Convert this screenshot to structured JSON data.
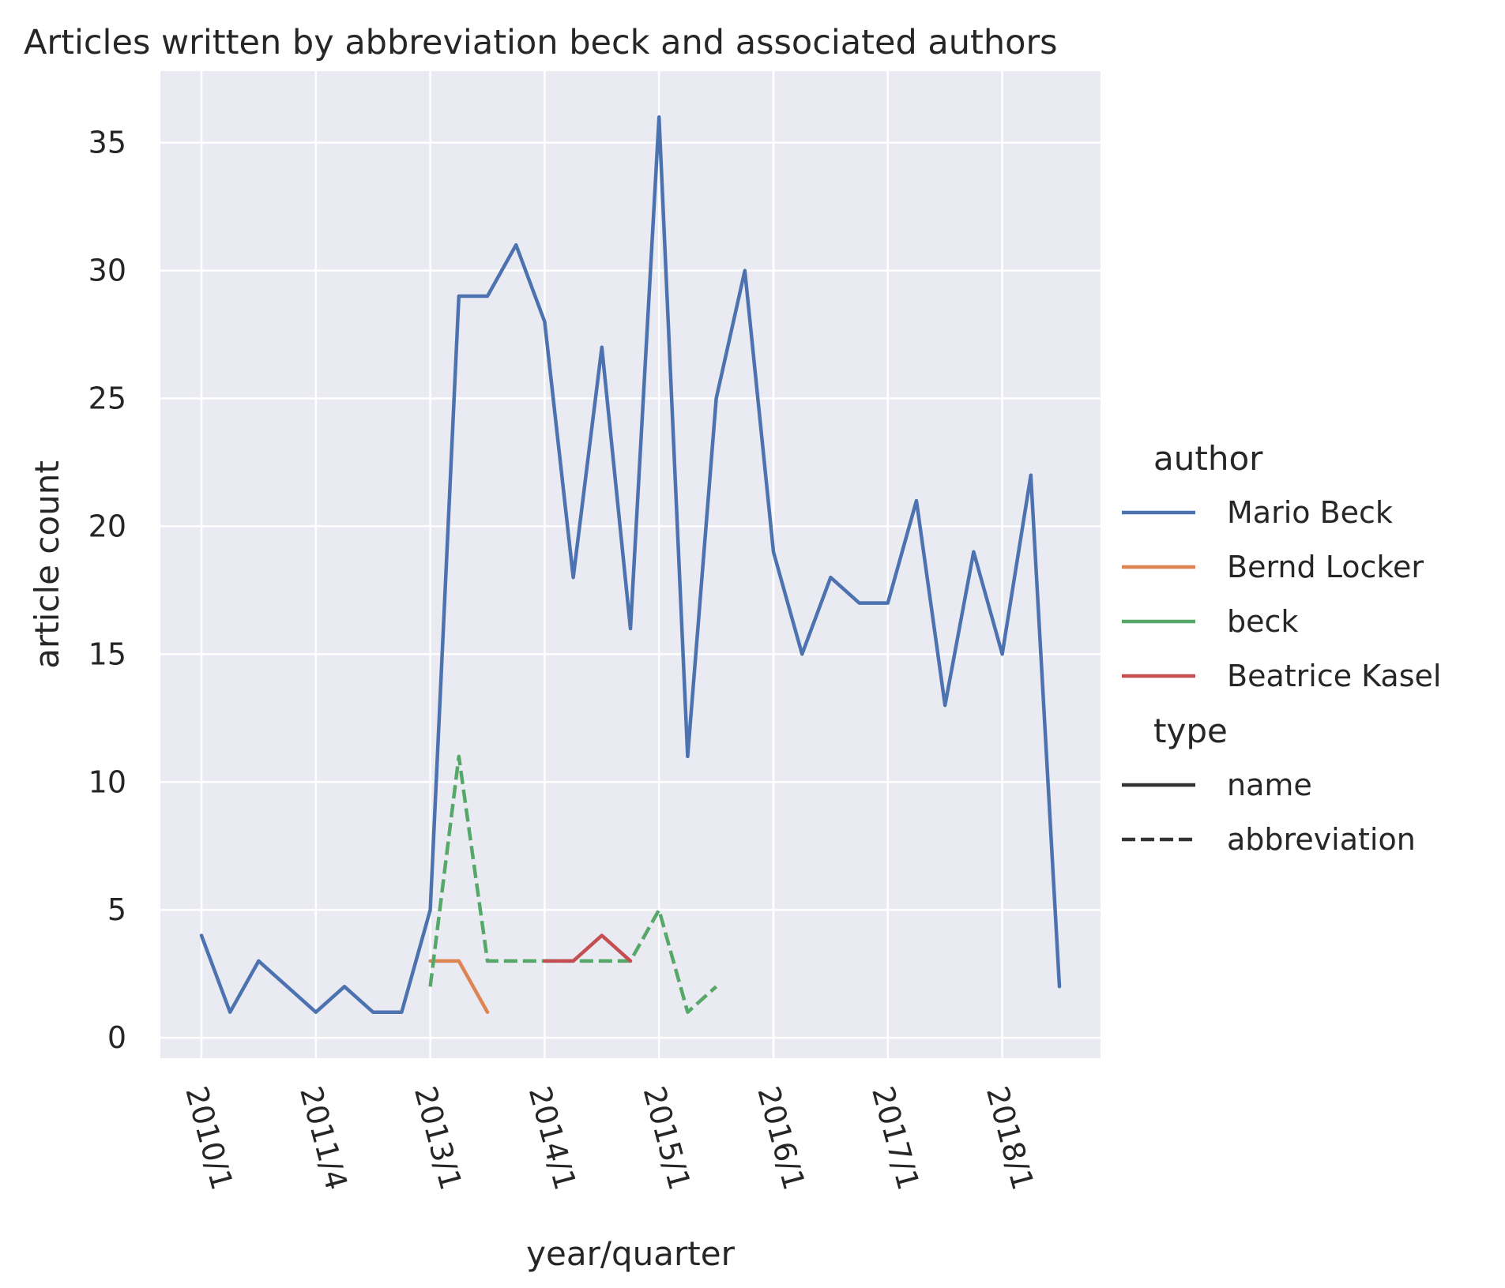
{
  "chart_data": {
    "type": "line",
    "title": "Articles written by abbreviation beck and associated authors",
    "xlabel": "year/quarter",
    "ylabel": "article count",
    "ylim": [
      -0.8,
      37.8
    ],
    "yticks": [
      0,
      5,
      10,
      15,
      20,
      25,
      30,
      35
    ],
    "x_tick_labels": [
      {
        "label": "2010/1",
        "index": 0
      },
      {
        "label": "2011/4",
        "index": 4
      },
      {
        "label": "2013/1",
        "index": 8
      },
      {
        "label": "2014/1",
        "index": 12
      },
      {
        "label": "2015/1",
        "index": 16
      },
      {
        "label": "2016/1",
        "index": 20
      },
      {
        "label": "2017/1",
        "index": 24
      },
      {
        "label": "2018/1",
        "index": 28
      }
    ],
    "grid": true,
    "legend_position": "right",
    "legend": {
      "author_title": "author",
      "authors": [
        {
          "name": "Mario Beck",
          "color": "#4c72b0"
        },
        {
          "name": "Bernd Locker",
          "color": "#dd8452"
        },
        {
          "name": "beck",
          "color": "#55a868"
        },
        {
          "name": "Beatrice Kasel",
          "color": "#c44e52"
        }
      ],
      "type_title": "type",
      "types": [
        {
          "name": "name",
          "dash": "solid"
        },
        {
          "name": "abbreviation",
          "dash": "dashed"
        }
      ]
    },
    "series": [
      {
        "name": "Mario Beck",
        "type": "name",
        "color": "#4c72b0",
        "points": [
          [
            0,
            4
          ],
          [
            1,
            1
          ],
          [
            2,
            3
          ],
          [
            3,
            2
          ],
          [
            4,
            1
          ],
          [
            5,
            2
          ],
          [
            6,
            1
          ],
          [
            7,
            1
          ],
          [
            8,
            5
          ],
          [
            9,
            29
          ],
          [
            10,
            29
          ],
          [
            11,
            31
          ],
          [
            12,
            28
          ],
          [
            13,
            18
          ],
          [
            14,
            27
          ],
          [
            15,
            16
          ],
          [
            16,
            36
          ],
          [
            17,
            11
          ],
          [
            18,
            25
          ],
          [
            19,
            30
          ],
          [
            20,
            19
          ],
          [
            21,
            15
          ],
          [
            22,
            18
          ],
          [
            23,
            17
          ],
          [
            24,
            17
          ],
          [
            25,
            21
          ],
          [
            26,
            13
          ],
          [
            27,
            19
          ],
          [
            28,
            15
          ],
          [
            29,
            22
          ],
          [
            30,
            2
          ]
        ]
      },
      {
        "name": "Bernd Locker",
        "type": "name",
        "color": "#dd8452",
        "points": [
          [
            8,
            3
          ],
          [
            9,
            3
          ],
          [
            10,
            1
          ]
        ]
      },
      {
        "name": "beck",
        "type": "abbreviation",
        "color": "#55a868",
        "points": [
          [
            8,
            2
          ],
          [
            9,
            11
          ],
          [
            10,
            3
          ],
          [
            11,
            3
          ],
          [
            12,
            3
          ],
          [
            13,
            3
          ],
          [
            14,
            3
          ],
          [
            15,
            3
          ],
          [
            16,
            5
          ],
          [
            17,
            1
          ],
          [
            18,
            2
          ]
        ]
      },
      {
        "name": "Beatrice Kasel",
        "type": "name",
        "color": "#c44e52",
        "points": [
          [
            12,
            3
          ],
          [
            13,
            3
          ],
          [
            14,
            4
          ],
          [
            15,
            3
          ]
        ]
      }
    ]
  }
}
